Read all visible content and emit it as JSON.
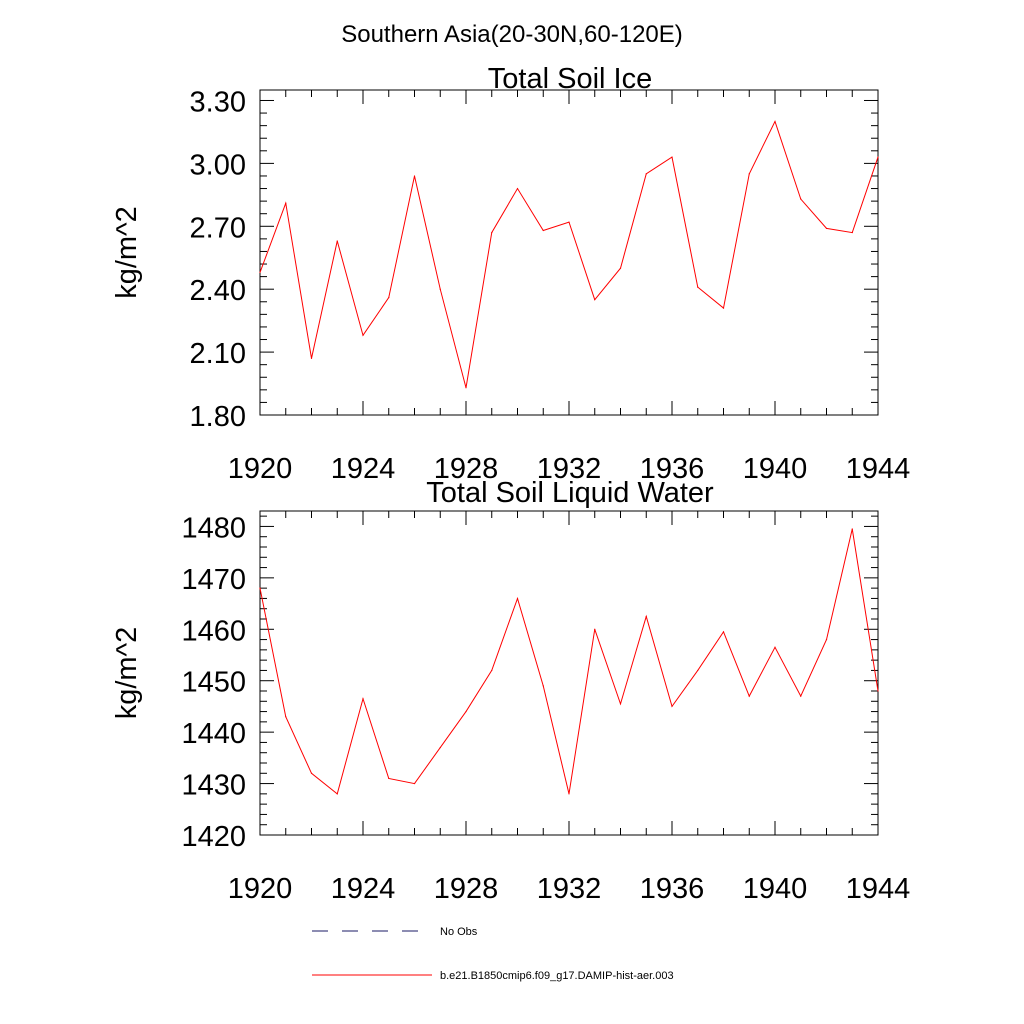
{
  "figure": {
    "suptitle": "Southern Asia(20-30N,60-120E)"
  },
  "colors": {
    "series": "#ff0000",
    "obs": "#1a1a66",
    "axes": "#000000"
  },
  "legend": {
    "obs_label": "No Obs",
    "model_label": "b.e21.B1850cmip6.f09_g17.DAMIP-hist-aer.003"
  },
  "chart_data": [
    {
      "type": "line",
      "title": "Total Soil Ice",
      "xlabel": "",
      "ylabel": "kg/m^2",
      "xlim": [
        1920,
        1944
      ],
      "ylim": [
        1.8,
        3.35
      ],
      "xticks": [
        "1920",
        "1924",
        "1928",
        "1932",
        "1936",
        "1940",
        "1944"
      ],
      "yticks": [
        "1.80",
        "2.10",
        "2.40",
        "2.70",
        "3.00",
        "3.30"
      ],
      "x": [
        1920,
        1921,
        1922,
        1923,
        1924,
        1925,
        1926,
        1927,
        1928,
        1929,
        1930,
        1931,
        1932,
        1933,
        1934,
        1935,
        1936,
        1937,
        1938,
        1939,
        1940,
        1941,
        1942,
        1943,
        1944
      ],
      "series": [
        {
          "name": "b.e21.B1850cmip6.f09_g17.DAMIP-hist-aer.003",
          "values": [
            2.48,
            2.81,
            2.07,
            2.63,
            2.18,
            2.36,
            2.94,
            2.4,
            1.93,
            2.67,
            2.88,
            2.68,
            2.72,
            2.35,
            2.5,
            2.95,
            3.03,
            2.41,
            2.31,
            2.95,
            3.2,
            2.83,
            2.69,
            2.67,
            3.03
          ]
        }
      ],
      "grid": false
    },
    {
      "type": "line",
      "title": "Total Soil Liquid Water",
      "xlabel": "",
      "ylabel": "kg/m^2",
      "xlim": [
        1920,
        1944
      ],
      "ylim": [
        1420,
        1483
      ],
      "xticks": [
        "1920",
        "1924",
        "1928",
        "1932",
        "1936",
        "1940",
        "1944"
      ],
      "yticks": [
        "1420",
        "1430",
        "1440",
        "1450",
        "1460",
        "1470",
        "1480"
      ],
      "x": [
        1920,
        1921,
        1922,
        1923,
        1924,
        1925,
        1926,
        1927,
        1928,
        1929,
        1930,
        1931,
        1932,
        1933,
        1934,
        1935,
        1936,
        1937,
        1938,
        1939,
        1940,
        1941,
        1942,
        1943,
        1944
      ],
      "series": [
        {
          "name": "b.e21.B1850cmip6.f09_g17.DAMIP-hist-aer.003",
          "values": [
            1468,
            1443,
            1432,
            1428,
            1446.5,
            1431,
            1430,
            1437,
            1444,
            1452,
            1466,
            1449,
            1428,
            1460,
            1445.5,
            1462.5,
            1445,
            1452,
            1459.5,
            1447,
            1456.5,
            1447,
            1458,
            1479.5,
            1448
          ]
        }
      ],
      "grid": false
    }
  ]
}
